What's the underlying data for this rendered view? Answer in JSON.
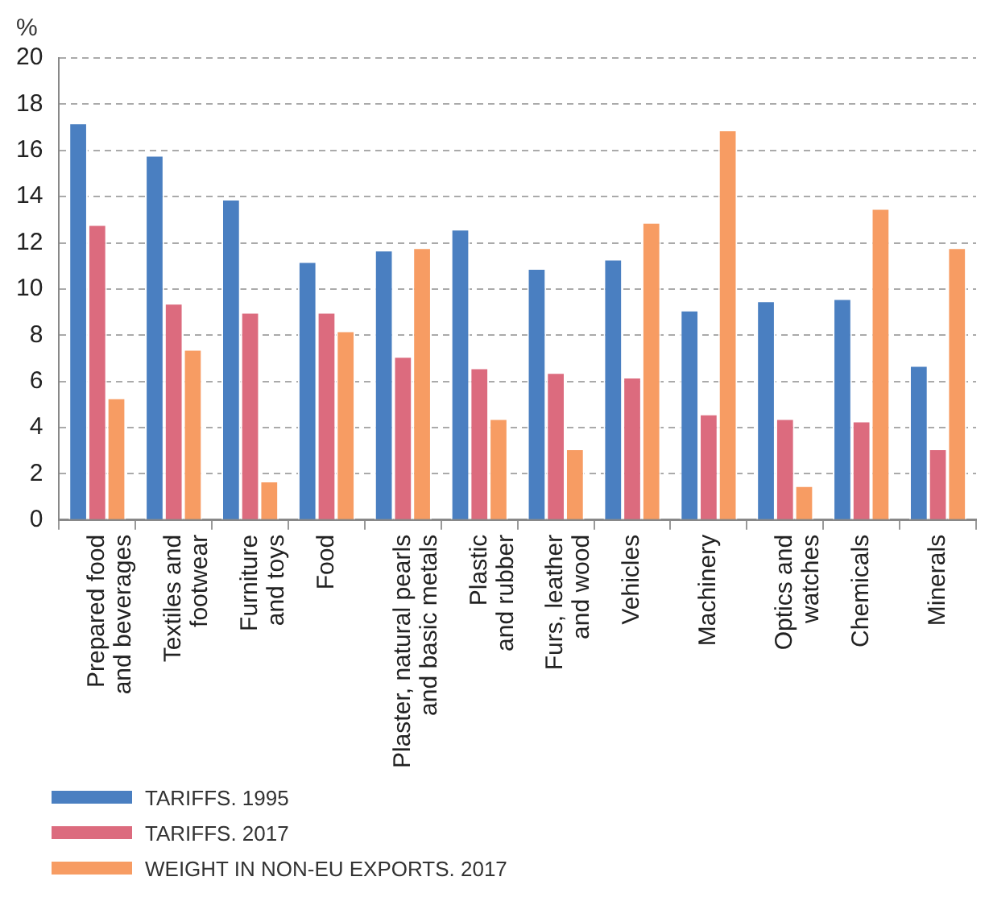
{
  "chart_data": {
    "type": "bar",
    "ylabel": "%",
    "categories": [
      "Prepared food and beverages",
      "Textiles and footwear",
      "Furniture and toys",
      "Food",
      "Plaster, natural pearls and basic metals",
      "Plastic and rubber",
      "Furs, leather and wood",
      "Vehicles",
      "Machinery",
      "Optics and watches",
      "Chemicals",
      "Minerals"
    ],
    "series": [
      {
        "name": "TARIFFS. 1995",
        "color": "#4a7fc1",
        "values": [
          17.2,
          15.8,
          13.9,
          11.2,
          11.7,
          12.6,
          10.9,
          11.3,
          9.1,
          9.5,
          9.6,
          6.7
        ]
      },
      {
        "name": "TARIFFS. 2017",
        "color": "#dc6b7e",
        "values": [
          12.8,
          9.4,
          9.0,
          9.0,
          7.1,
          6.6,
          6.4,
          6.2,
          4.6,
          4.4,
          4.3,
          3.1
        ]
      },
      {
        "name": "WEIGHT IN NON-EU EXPORTS. 2017",
        "color": "#f79c63",
        "values": [
          5.3,
          7.4,
          1.7,
          8.2,
          11.8,
          4.4,
          3.1,
          12.9,
          16.9,
          1.5,
          13.5,
          11.8
        ]
      }
    ],
    "ylim": [
      0,
      20
    ],
    "yticks": [
      0,
      2,
      4,
      6,
      8,
      10,
      12,
      14,
      16,
      18,
      20
    ],
    "grid": "y",
    "legend": "bottom left"
  }
}
